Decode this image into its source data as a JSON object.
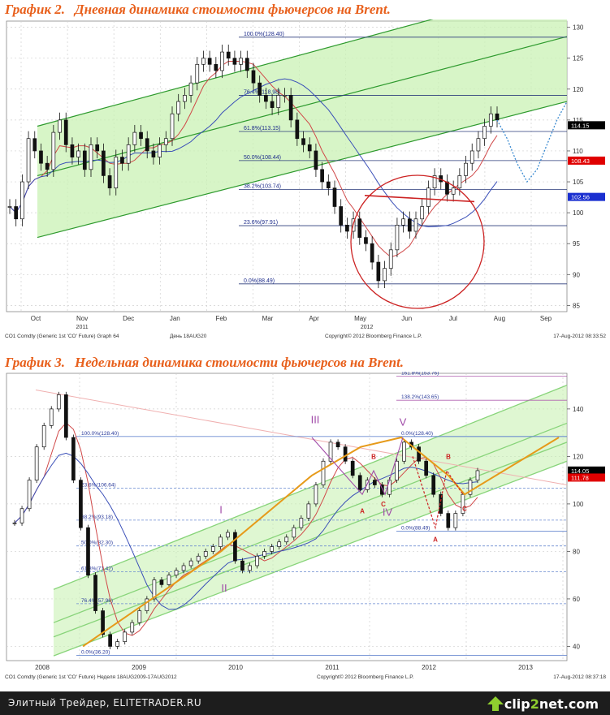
{
  "footer": {
    "text": "Элитный Трейдер, ELITETRADER.RU",
    "logo_part1": "clip",
    "logo_part2": "2",
    "logo_part3": "net.com"
  },
  "chart_data": [
    {
      "type": "candlestick",
      "number": "График 2.",
      "title": "Дневная динамика стоимости фьючерсов на Brent.",
      "y_ticks": [
        85,
        90,
        95,
        100,
        105,
        110,
        115,
        120,
        125,
        130
      ],
      "ylim": [
        84,
        131
      ],
      "x_tick_labels": [
        "Oct",
        "Nov",
        "Dec",
        "Jan",
        "Feb",
        "Mar",
        "Apr",
        "May",
        "Jun",
        "Jul",
        "Aug",
        "Sep"
      ],
      "x_year_labels": [
        "2011",
        "2012"
      ],
      "fib_levels": [
        {
          "label": "100.0%(128.40)",
          "value": 128.4
        },
        {
          "label": "76.4%(118.98)",
          "value": 118.98
        },
        {
          "label": "61.8%(113.15)",
          "value": 113.15
        },
        {
          "label": "50.0%(108.44)",
          "value": 108.44
        },
        {
          "label": "38.2%(103.74)",
          "value": 103.74
        },
        {
          "label": "23.6%(97.91)",
          "value": 97.91
        },
        {
          "label": "0.0%(88.49)",
          "value": 88.49
        }
      ],
      "price_tags": [
        {
          "label": "114.15",
          "value": 114.15,
          "color": "#000000"
        },
        {
          "label": "108.43",
          "value": 108.43,
          "color": "#e00000"
        },
        {
          "label": "102.56",
          "value": 102.56,
          "color": "#1a2fd0"
        }
      ],
      "close_series": [
        101,
        99,
        105,
        112,
        110,
        108,
        107,
        113,
        115,
        111,
        109,
        110,
        107,
        111,
        110,
        106,
        104,
        109,
        108,
        111,
        113,
        112,
        110,
        109,
        111,
        112,
        116,
        118,
        119,
        121,
        124,
        125,
        124,
        123,
        126,
        125,
        124,
        125,
        123,
        121,
        119,
        118,
        117,
        119,
        119,
        115,
        112,
        111,
        110,
        107,
        105,
        104,
        101,
        98,
        97,
        99,
        96,
        95,
        92,
        89,
        91,
        94,
        98,
        99,
        97,
        99,
        101,
        104,
        106,
        105,
        103,
        104,
        106,
        108,
        110,
        112,
        114,
        116,
        115
      ],
      "projection": [
        115,
        112,
        108,
        105,
        107,
        111,
        115,
        118
      ],
      "footer_left": "CO1 Comdty (Generic 1st 'CO' Future) Graph 64",
      "footer_mid": "День 18AUG20",
      "footer_copy": "Copyright© 2012 Bloomberg Finance L.P.",
      "footer_right": "17-Aug-2012 08:33:52"
    },
    {
      "type": "candlestick",
      "number": "График 3.",
      "title": "Недельная динамика стоимости фьючерсов на Brent.",
      "y_ticks": [
        40,
        60,
        80,
        100,
        120,
        140
      ],
      "ylim": [
        34,
        155
      ],
      "x_tick_labels": [
        "2008",
        "2009",
        "2010",
        "2011",
        "2012",
        "2013"
      ],
      "fib_levels": [
        {
          "label": "161.8%(153.76)",
          "value": 153.76
        },
        {
          "label": "138.2%(143.65)",
          "value": 143.65
        },
        {
          "label": "100.0%(128.40)",
          "value": 128.4
        },
        {
          "label": "0.0%(128.40)",
          "value": 128.4
        },
        {
          "label": "23.6%(106.64)",
          "value": 106.64
        },
        {
          "label": "38.2%(93.18)",
          "value": 93.18
        },
        {
          "label": "50.0%(82.30)",
          "value": 82.3
        },
        {
          "label": "61.8%(71.42)",
          "value": 71.42
        },
        {
          "label": "76.4%(57.96)",
          "value": 57.96
        },
        {
          "label": "0.0%(36.20)",
          "value": 36.2
        },
        {
          "label": "0.0%(88.49)",
          "value": 88.49
        }
      ],
      "price_tags": [
        {
          "label": "114.05",
          "value": 114.05,
          "color": "#000000"
        },
        {
          "label": "111.78",
          "value": 111.78,
          "color": "#e00000"
        }
      ],
      "wave_labels": [
        "I",
        "II",
        "III",
        "IV",
        "V",
        "A",
        "B",
        "C",
        "A",
        "B",
        "C"
      ],
      "close_series": [
        92,
        98,
        110,
        124,
        133,
        140,
        146,
        128,
        110,
        90,
        70,
        55,
        45,
        40,
        42,
        46,
        50,
        55,
        60,
        68,
        66,
        70,
        72,
        74,
        76,
        78,
        80,
        82,
        86,
        88,
        76,
        72,
        74,
        78,
        80,
        82,
        84,
        86,
        90,
        94,
        100,
        108,
        118,
        126,
        124,
        118,
        112,
        106,
        110,
        108,
        104,
        110,
        118,
        126,
        124,
        118,
        112,
        104,
        96,
        90,
        96,
        104,
        110,
        114
      ],
      "footer_left": "CO1 Comdty (Generic 1st 'CO' Future) Неделя 18AUG2009-17AUG2012",
      "footer_copy": "Copyright© 2012 Bloomberg Finance L.P.",
      "footer_right": "17-Aug-2012 08:37:18"
    }
  ]
}
